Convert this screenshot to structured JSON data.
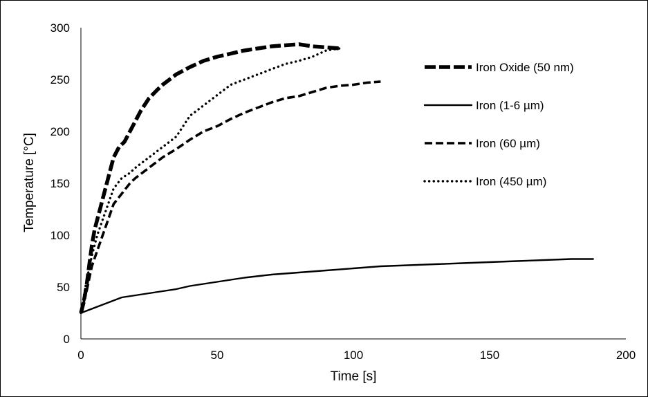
{
  "chart_data": {
    "type": "line",
    "title": "",
    "xlabel": "Time [s]",
    "ylabel": "Temperature [°C]",
    "xlim": [
      0,
      200
    ],
    "ylim": [
      0,
      300
    ],
    "xticks": [
      "0",
      "50",
      "100",
      "150",
      "200"
    ],
    "yticks": [
      "0",
      "50",
      "100",
      "150",
      "200",
      "250",
      "300"
    ],
    "grid": false,
    "legend_position": "top-right",
    "series": [
      {
        "name": "Iron Oxide (50 nm)",
        "style": "thick-dashed",
        "x": [
          0,
          1,
          2,
          3,
          4,
          5,
          6,
          7,
          8,
          10,
          12,
          14,
          16,
          18,
          20,
          22,
          25,
          28,
          30,
          35,
          40,
          45,
          50,
          55,
          60,
          65,
          70,
          75,
          80,
          85,
          90,
          95
        ],
        "y": [
          25,
          35,
          50,
          70,
          90,
          105,
          115,
          125,
          135,
          155,
          175,
          185,
          190,
          200,
          210,
          220,
          232,
          240,
          245,
          255,
          262,
          268,
          272,
          275,
          278,
          280,
          282,
          283,
          284,
          282,
          281,
          280
        ]
      },
      {
        "name": "Iron (1-6 µm)",
        "style": "solid",
        "x": [
          0,
          5,
          10,
          15,
          20,
          25,
          30,
          35,
          40,
          50,
          60,
          70,
          80,
          90,
          100,
          110,
          120,
          130,
          140,
          150,
          160,
          170,
          180,
          188
        ],
        "y": [
          25,
          30,
          35,
          40,
          42,
          44,
          46,
          48,
          51,
          55,
          59,
          62,
          64,
          66,
          68,
          70,
          71,
          72,
          73,
          74,
          75,
          76,
          77,
          77
        ]
      },
      {
        "name": "Iron (60 µm)",
        "style": "dashed",
        "x": [
          0,
          2,
          4,
          6,
          8,
          10,
          12,
          15,
          18,
          20,
          25,
          30,
          35,
          40,
          45,
          50,
          55,
          60,
          65,
          70,
          75,
          80,
          85,
          90,
          95,
          100,
          105,
          110
        ],
        "y": [
          25,
          45,
          70,
          85,
          100,
          115,
          130,
          140,
          150,
          155,
          165,
          175,
          183,
          192,
          200,
          205,
          212,
          218,
          223,
          228,
          232,
          234,
          238,
          242,
          244,
          245,
          247,
          248
        ]
      },
      {
        "name": "Iron (450 µm)",
        "style": "dotted",
        "x": [
          0,
          2,
          4,
          6,
          8,
          10,
          12,
          15,
          18,
          20,
          25,
          30,
          35,
          40,
          45,
          50,
          55,
          60,
          65,
          70,
          75,
          80,
          85,
          90,
          95
        ],
        "y": [
          25,
          55,
          80,
          100,
          115,
          130,
          145,
          155,
          160,
          165,
          175,
          185,
          195,
          215,
          225,
          235,
          245,
          250,
          255,
          260,
          265,
          268,
          272,
          278,
          280
        ]
      }
    ]
  }
}
